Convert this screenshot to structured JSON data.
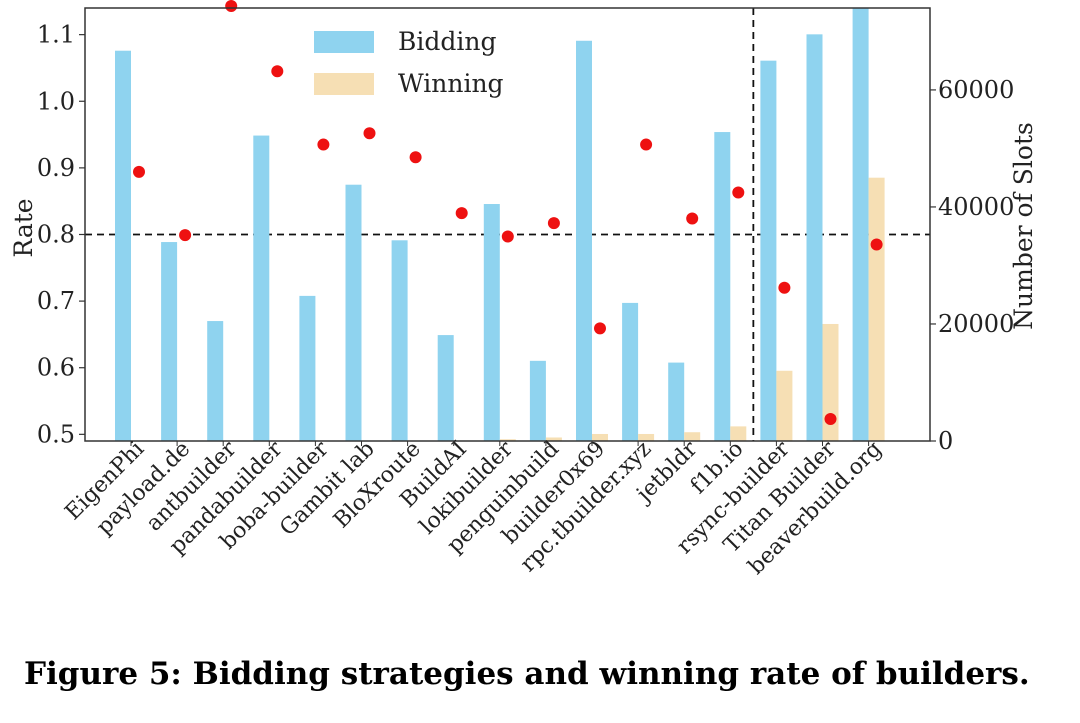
{
  "caption": "Figure 5: Bidding strategies and winning rate of builders.",
  "chart_data": {
    "type": "bar",
    "ylabel_left": "Rate",
    "ylabel_right": "Number of Slots",
    "ylim_left": [
      0.49,
      1.14
    ],
    "ylim_right": [
      0,
      74000
    ],
    "yticks_left": [
      "0.5",
      "0.6",
      "0.7",
      "0.8",
      "0.9",
      "1.0",
      "1.1"
    ],
    "yticks_right": [
      "0",
      "20000",
      "40000",
      "60000"
    ],
    "hline_rate": 0.8,
    "vline_after_category": "f1b.io",
    "legend": {
      "position": "top-center",
      "entries": [
        "Bidding",
        "Winning"
      ]
    },
    "colors": {
      "bidding": "#8fd3ef",
      "winning": "#f6dfb4",
      "rate": "#ee1111"
    },
    "categories": [
      "EigenPhi",
      "payload.de",
      "antbuilder",
      "pandabuilder",
      "boba-builder",
      "Gambit lab",
      "BloXroute",
      "BuildAI",
      "lokibuilder",
      "penguinbuild",
      "builder0x69",
      "rpc.tbuilder.xyz",
      "jetbldr",
      "f1b.io",
      "rsync-builder",
      "Titan Builder",
      "beaverbuild.org"
    ],
    "series": [
      {
        "name": "Bidding",
        "axis": "right",
        "kind": "bar",
        "values": [
          66700,
          34000,
          20500,
          52200,
          24800,
          43800,
          34300,
          18100,
          40500,
          13700,
          68400,
          23600,
          13400,
          52800,
          65000,
          69500,
          74000
        ]
      },
      {
        "name": "Winning",
        "axis": "right",
        "kind": "bar",
        "values": [
          0,
          0,
          0,
          0,
          0,
          0,
          0,
          0,
          300,
          600,
          1200,
          1200,
          1500,
          2500,
          12000,
          20000,
          45000
        ]
      },
      {
        "axis": "left",
        "kind": "scatter",
        "values": [
          0.894,
          0.799,
          1.143,
          1.045,
          0.935,
          0.952,
          0.916,
          0.832,
          0.797,
          0.817,
          0.659,
          0.935,
          0.824,
          0.863,
          0.72,
          0.523,
          0.785
        ]
      }
    ]
  }
}
